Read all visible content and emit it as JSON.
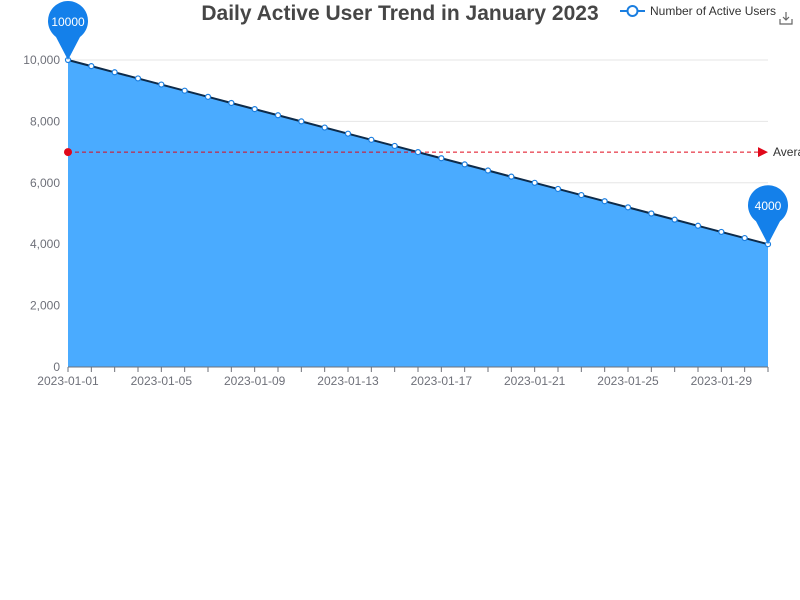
{
  "colors": {
    "area": "#4aabff",
    "line": "#0d2b4a",
    "marker": "#1a7ee0",
    "pin": "#1480ea",
    "avg_line": "#e0081a",
    "axis": "#6e7079",
    "grid": "#e6e6e6"
  },
  "icons": {
    "legend": "line-circle-icon",
    "save": "download-icon"
  },
  "chart_data": {
    "type": "area",
    "title": "Daily Active User Trend in January 2023",
    "legend": [
      "Number of Active Users"
    ],
    "legend_position": "top-right",
    "grid": true,
    "x": [
      "2023-01-01",
      "2023-01-02",
      "2023-01-03",
      "2023-01-04",
      "2023-01-05",
      "2023-01-06",
      "2023-01-07",
      "2023-01-08",
      "2023-01-09",
      "2023-01-10",
      "2023-01-11",
      "2023-01-12",
      "2023-01-13",
      "2023-01-14",
      "2023-01-15",
      "2023-01-16",
      "2023-01-17",
      "2023-01-18",
      "2023-01-19",
      "2023-01-20",
      "2023-01-21",
      "2023-01-22",
      "2023-01-23",
      "2023-01-24",
      "2023-01-25",
      "2023-01-26",
      "2023-01-27",
      "2023-01-28",
      "2023-01-29",
      "2023-01-30",
      "2023-01-31"
    ],
    "x_tick_labels": [
      "2023-01-01",
      "2023-01-05",
      "2023-01-09",
      "2023-01-13",
      "2023-01-17",
      "2023-01-21",
      "2023-01-25",
      "2023-01-29"
    ],
    "series": [
      {
        "name": "Number of Active Users",
        "values": [
          10000,
          9800,
          9600,
          9400,
          9200,
          9000,
          8800,
          8600,
          8400,
          8200,
          8000,
          7800,
          7600,
          7400,
          7200,
          7000,
          6800,
          6600,
          6400,
          6200,
          6000,
          5800,
          5600,
          5400,
          5200,
          5000,
          4800,
          4600,
          4400,
          4200,
          4000
        ]
      }
    ],
    "ylim": [
      0,
      10000
    ],
    "y_ticks": [
      "0",
      "2,000",
      "4,000",
      "6,000",
      "8,000",
      "10,000"
    ],
    "mark_points": [
      {
        "label": "10000",
        "date": "2023-01-01",
        "value": 10000
      },
      {
        "label": "4000",
        "date": "2023-01-31",
        "value": 4000
      }
    ],
    "mark_line": {
      "label": "Avera",
      "value": 7000
    }
  }
}
